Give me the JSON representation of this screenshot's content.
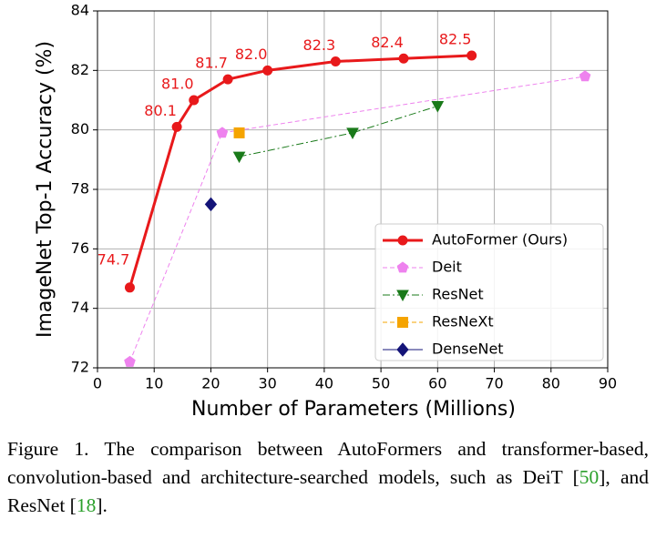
{
  "chart_data": {
    "type": "line",
    "xlabel": "Number of Parameters (Millions)",
    "ylabel": "ImageNet Top-1 Accuracy (%)",
    "xlim": [
      0,
      90
    ],
    "xticks": [
      0,
      10,
      20,
      30,
      40,
      50,
      60,
      70,
      80,
      90
    ],
    "ylim": [
      72,
      84
    ],
    "yticks": [
      72,
      74,
      76,
      78,
      80,
      82,
      84
    ],
    "grid": true,
    "legend": "lower right",
    "series": [
      {
        "name": "AutoFormer (Ours)",
        "color": "#e8191b",
        "marker": "circle",
        "linestyle": "solid",
        "x": [
          5.7,
          14,
          17,
          23,
          30,
          42,
          54,
          66
        ],
        "values": [
          74.7,
          80.1,
          81.0,
          81.7,
          82.0,
          82.3,
          82.4,
          82.5
        ],
        "value_labels": [
          "74.7",
          "80.1",
          "81.0",
          "81.7",
          "82.0",
          "82.3",
          "82.4",
          "82.5"
        ]
      },
      {
        "name": "Deit",
        "color": "#ee82ee",
        "marker": "pentagon",
        "linestyle": "dashed",
        "x": [
          5.7,
          22,
          86
        ],
        "values": [
          72.2,
          79.9,
          81.8
        ]
      },
      {
        "name": "ResNet",
        "color": "#1a7a1a",
        "marker": "triangle-down",
        "linestyle": "dashdot",
        "x": [
          25,
          45,
          60
        ],
        "values": [
          79.1,
          79.9,
          80.8
        ]
      },
      {
        "name": "ResNeXt",
        "color": "#f5a400",
        "marker": "square",
        "linestyle": "dashed",
        "x": [
          25
        ],
        "values": [
          79.9
        ]
      },
      {
        "name": "DenseNet",
        "color": "#141478",
        "marker": "diamond",
        "linestyle": "solid",
        "x": [
          20
        ],
        "values": [
          77.5
        ]
      }
    ]
  },
  "caption": [
    "Figure 1. The comparison between AutoFormers and transformer-based, convolution-based and architecture-searched models, such as DeiT [",
    "50",
    "], and ResNet [",
    "18",
    "]."
  ]
}
